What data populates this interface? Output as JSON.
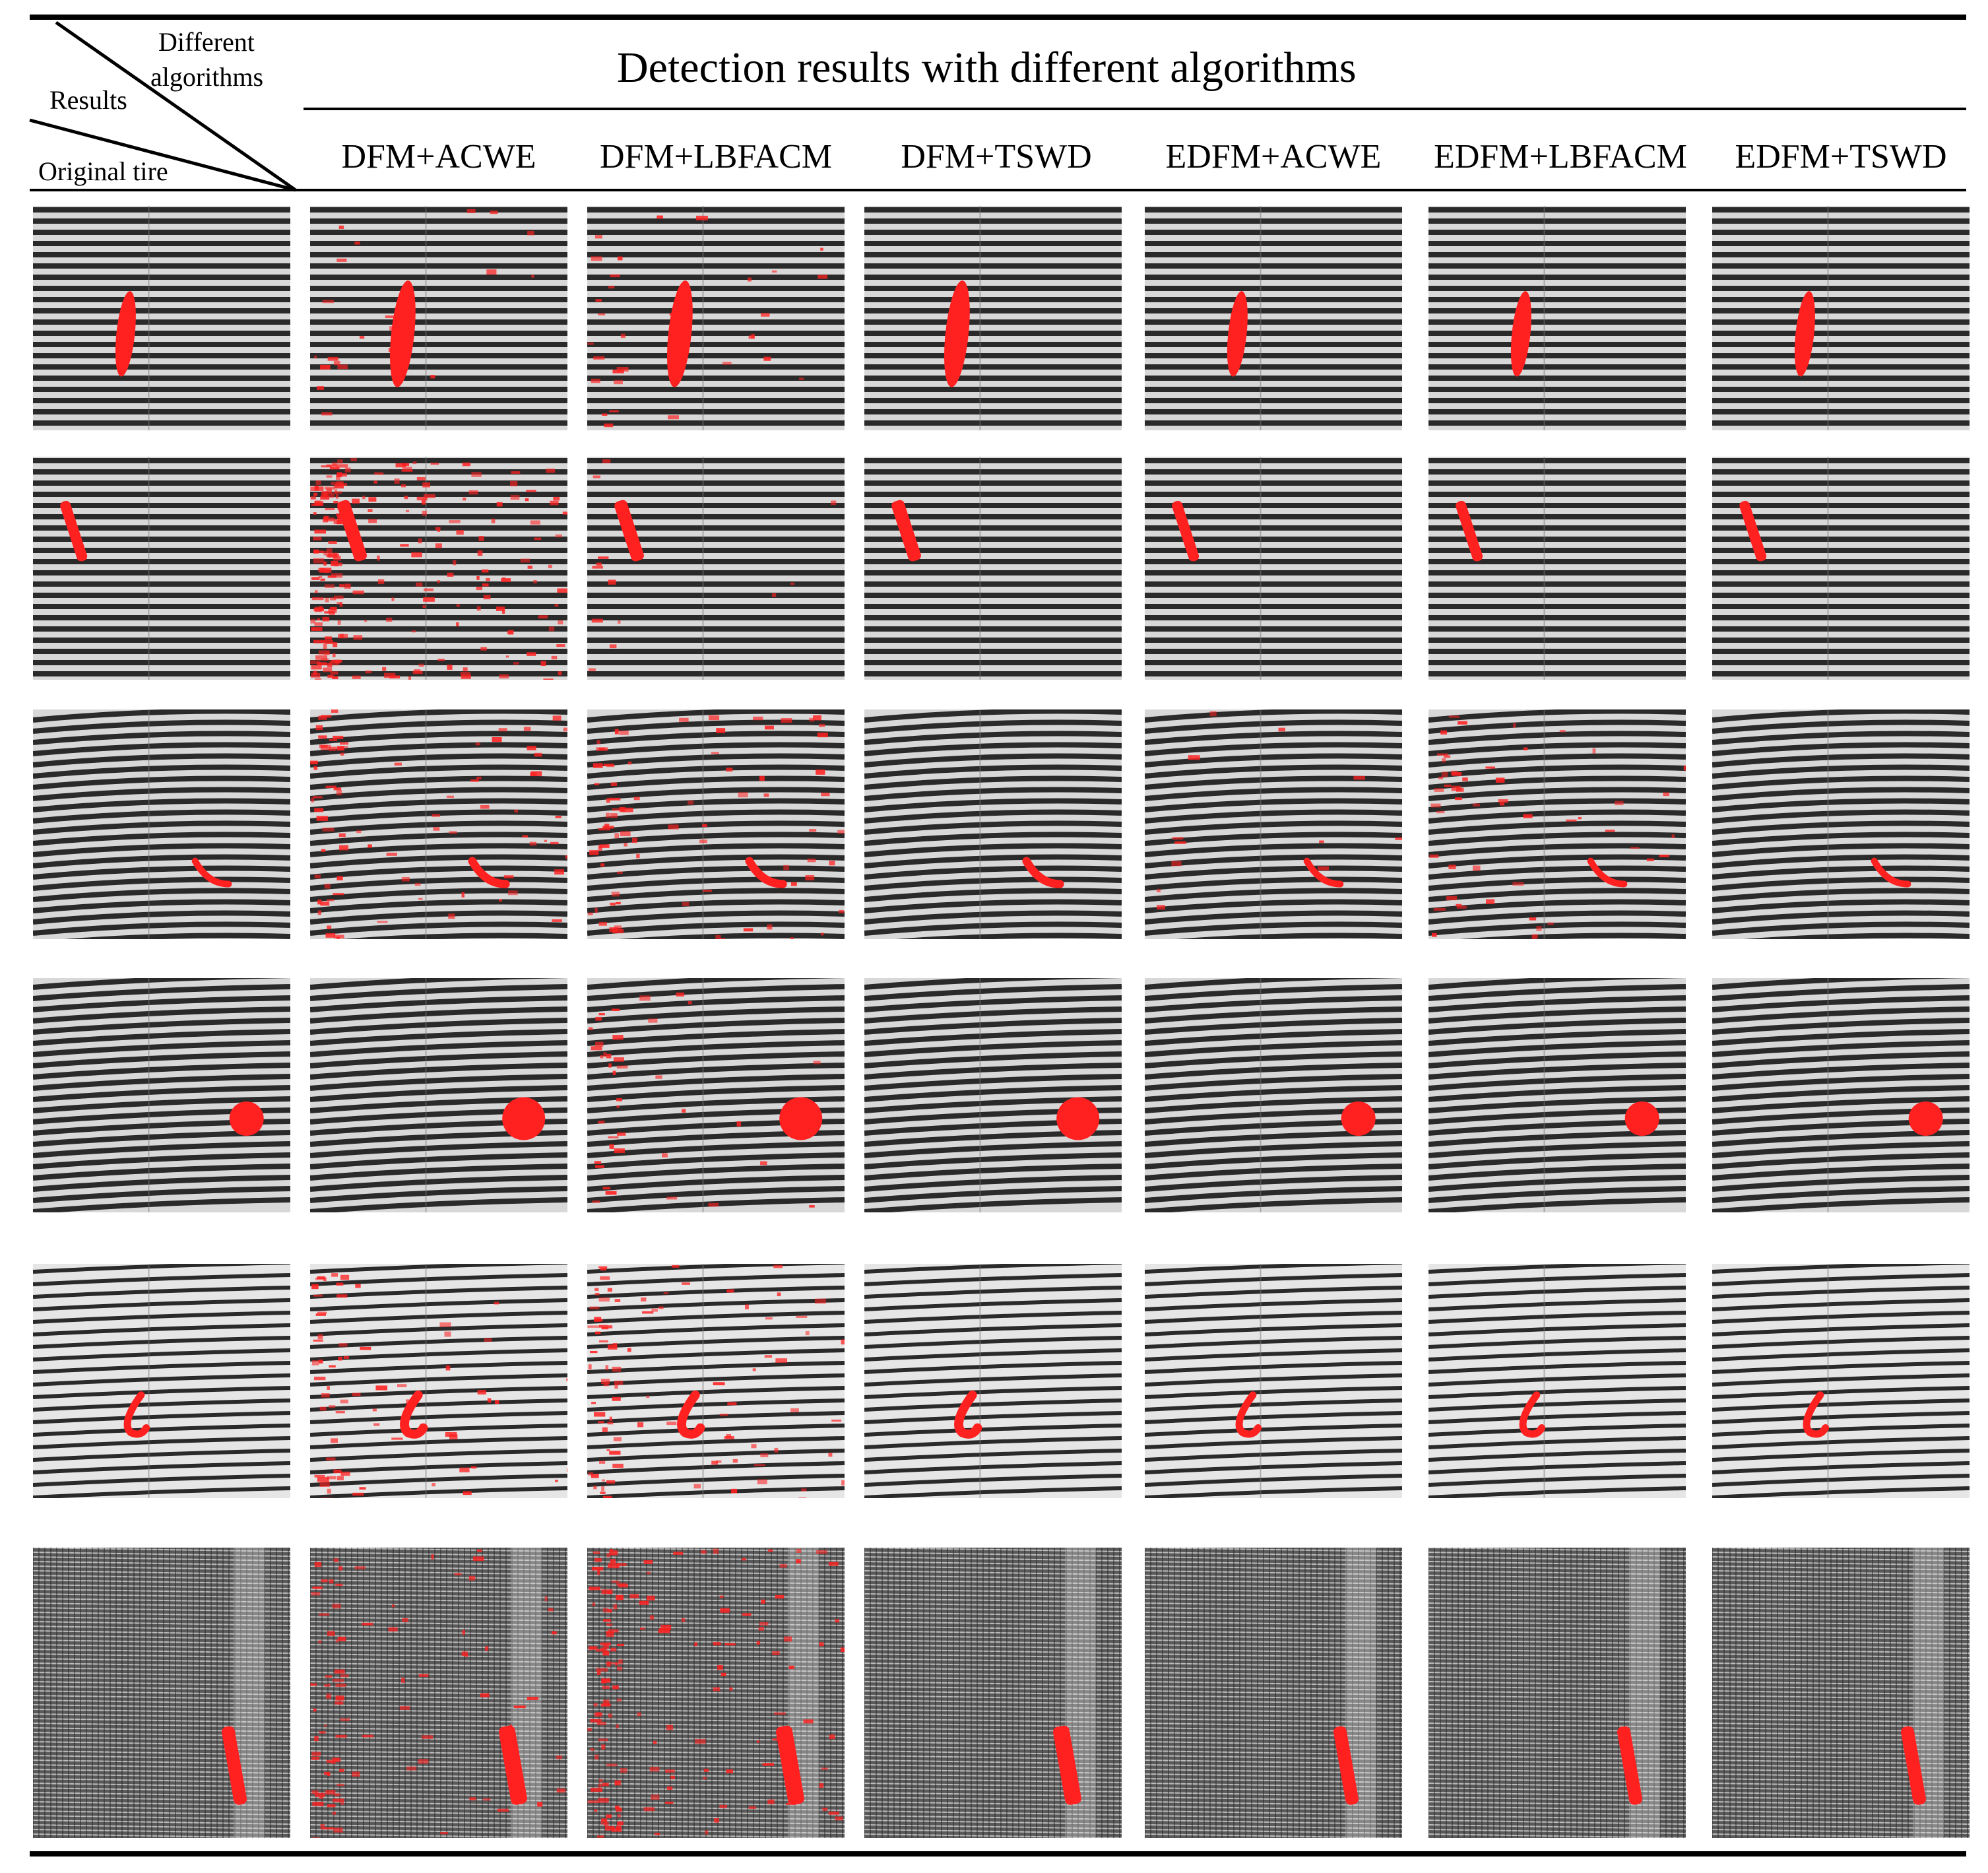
{
  "figure": {
    "title": "Detection results with different algorithms",
    "corner": {
      "top_label": "Different algorithms",
      "top_label_line1": "Different",
      "top_label_line2": "algorithms",
      "middle_label": "Results",
      "bottom_label": "Original tire"
    },
    "columns": [
      {
        "label": ""
      },
      {
        "label": "DFM+ACWE"
      },
      {
        "label": "DFM+LBFACM"
      },
      {
        "label": "DFM+TSWD"
      },
      {
        "label": "EDFM+ACWE"
      },
      {
        "label": "EDFM+LBFACM"
      },
      {
        "label": "EDFM+TSWD"
      }
    ],
    "colors": {
      "stripe_dark": "#2a2a2a",
      "stripe_light": "#d8d8d8",
      "defect": "#ff2020",
      "rule": "#000000"
    },
    "rows": [
      {
        "pattern": "stripes",
        "defect_shape": "vertical-blob",
        "noise": [
          0,
          0.08,
          0.12,
          0,
          0,
          0,
          0
        ]
      },
      {
        "pattern": "stripes",
        "defect_shape": "slanted-bar",
        "noise": [
          0,
          0.9,
          0.05,
          0,
          0,
          0,
          0
        ]
      },
      {
        "pattern": "curved-stripes",
        "defect_shape": "curved-streak",
        "noise": [
          0,
          0.3,
          0.3,
          0,
          0.05,
          0.2,
          0
        ]
      },
      {
        "pattern": "wave-stripes",
        "defect_shape": "round-blob",
        "noise": [
          0,
          0,
          0.15,
          0,
          0,
          0,
          0
        ]
      },
      {
        "pattern": "light-stripes",
        "defect_shape": "hook",
        "noise": [
          0,
          0.25,
          0.35,
          0,
          0,
          0,
          0
        ]
      },
      {
        "pattern": "fabric",
        "defect_shape": "long-bar",
        "noise": [
          0,
          0.35,
          0.6,
          0,
          0,
          0,
          0
        ]
      }
    ]
  }
}
